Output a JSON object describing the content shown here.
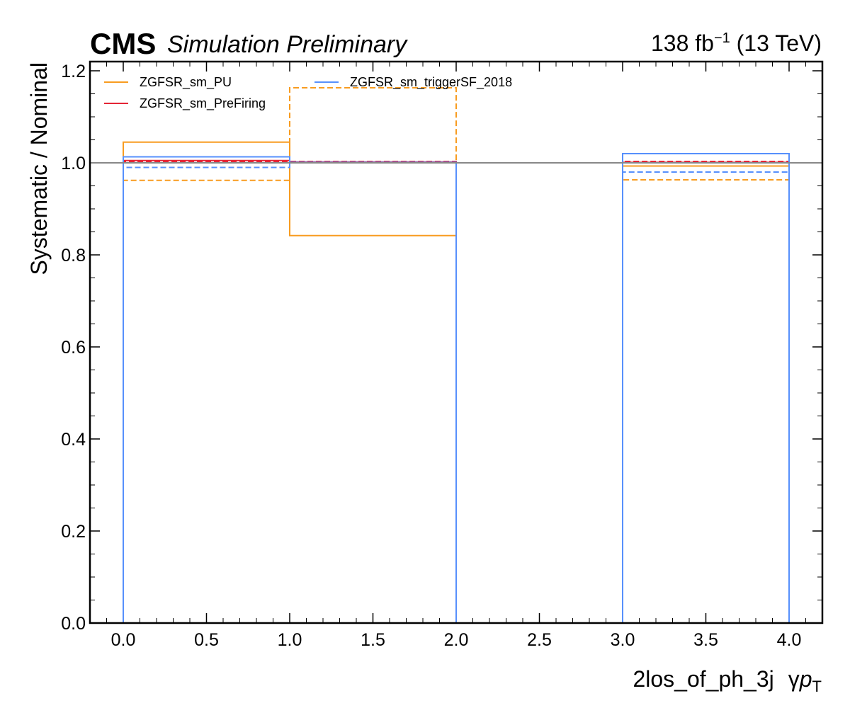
{
  "header": {
    "experiment": "CMS",
    "status": "Simulation Preliminary",
    "lumi_value": "138 fb",
    "lumi_exp": "−1",
    "energy": " (13 TeV)"
  },
  "chart_data": {
    "type": "line",
    "style": "step histogram ratio",
    "title": "",
    "xlabel": "2los_of_ph_3j",
    "xlabel_suffix": "γ",
    "xlabel_var": "p",
    "xlabel_sub": "T",
    "ylabel": "Systematic / Nominal",
    "xlim": [
      -0.2,
      4.2
    ],
    "ylim": [
      0.0,
      1.22
    ],
    "xticks": [
      "0.0",
      "0.5",
      "1.0",
      "1.5",
      "2.0",
      "2.5",
      "3.0",
      "3.5",
      "4.0"
    ],
    "yticks": [
      "0.0",
      "0.2",
      "0.4",
      "0.6",
      "0.8",
      "1.0",
      "1.2"
    ],
    "bin_edges": [
      0,
      1,
      2,
      3,
      4
    ],
    "reference_line": 1.0,
    "legend_position": "top-left",
    "series": [
      {
        "name": "ZGFSR_sm_PU",
        "color": "#f89c20",
        "up": [
          1.045,
          0.842,
          0.0,
          0.993
        ],
        "down": [
          0.962,
          1.163,
          0.0,
          0.963
        ]
      },
      {
        "name": "ZGFSR_sm_PreFiring",
        "color": "#e42536",
        "up": [
          1.005,
          1.002,
          0.0,
          1.001
        ],
        "down": [
          1.003,
          1.003,
          0.0,
          1.003
        ]
      },
      {
        "name": "ZGFSR_sm_triggerSF_2018",
        "color": "#5790fc",
        "up": [
          1.013,
          1.001,
          0.0,
          1.02
        ],
        "down": [
          0.99,
          1.001,
          0.0,
          0.98
        ]
      }
    ]
  }
}
